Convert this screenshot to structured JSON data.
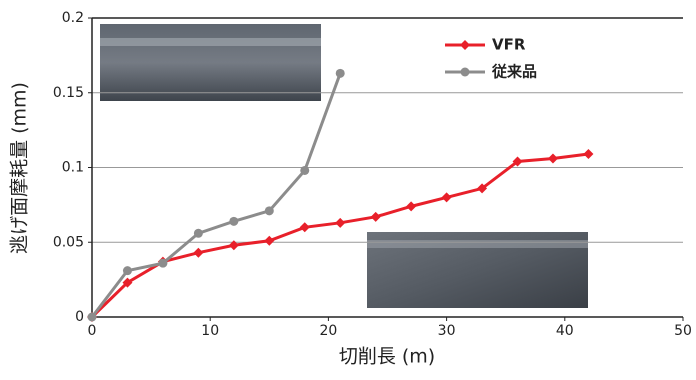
{
  "chart_data": {
    "type": "line",
    "xlabel": "切削長 (m)",
    "ylabel": "逃げ面摩耗量 (mm)",
    "xlim": [
      0,
      50
    ],
    "xticks": [
      0,
      10,
      20,
      30,
      40,
      50
    ],
    "ylim": [
      0,
      0.2
    ],
    "yticks": [
      0,
      0.05,
      0.1,
      0.15,
      0.2
    ],
    "grid": true,
    "legend": "upper right",
    "series": [
      {
        "name": "VFR",
        "color": "#e8202a",
        "marker": "diamond",
        "x": [
          0,
          3,
          6,
          9,
          12,
          15,
          18,
          21,
          24,
          27,
          30,
          33,
          36,
          39,
          42
        ],
        "values": [
          0,
          0.023,
          0.037,
          0.043,
          0.048,
          0.051,
          0.06,
          0.063,
          0.067,
          0.074,
          0.08,
          0.086,
          0.104,
          0.106,
          0.109
        ]
      },
      {
        "name": "従来品",
        "color": "#8c8c8c",
        "marker": "circle",
        "x": [
          0,
          3,
          6,
          9,
          12,
          15,
          18,
          21
        ],
        "values": [
          0,
          0.031,
          0.036,
          0.056,
          0.064,
          0.071,
          0.098,
          0.163
        ]
      }
    ]
  }
}
